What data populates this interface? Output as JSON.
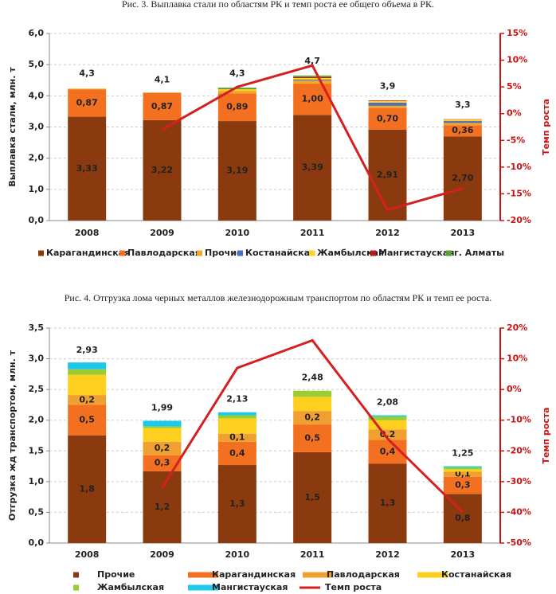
{
  "chart_data": [
    {
      "type": "bar",
      "stacked": true,
      "title": "Рис. 3. Выплавка стали по областям РК и темп роста ее общего объема в РК.",
      "y_label": "Выплавка стали, млн. т",
      "y2_label": "Темп роста",
      "categories": [
        "2008",
        "2009",
        "2010",
        "2011",
        "2012",
        "2013"
      ],
      "ylim": [
        0,
        6
      ],
      "yticks": [
        {
          "value": 0,
          "label": "0,0"
        },
        {
          "value": 1,
          "label": "1,0"
        },
        {
          "value": 2,
          "label": "2,0"
        },
        {
          "value": 3,
          "label": "3,0"
        },
        {
          "value": 4,
          "label": "4,0"
        },
        {
          "value": 5,
          "label": "5,0"
        },
        {
          "value": 6,
          "label": "6,0"
        }
      ],
      "y2lim": [
        -20,
        15
      ],
      "y2ticks": [
        {
          "value": -20,
          "label": "-20%"
        },
        {
          "value": -15,
          "label": "-15%"
        },
        {
          "value": -10,
          "label": "-10%"
        },
        {
          "value": -5,
          "label": "-5%"
        },
        {
          "value": 0,
          "label": "0%"
        },
        {
          "value": 5,
          "label": "5%"
        },
        {
          "value": 10,
          "label": "10%"
        },
        {
          "value": 15,
          "label": "15%"
        }
      ],
      "grid": true,
      "legend": "bottom",
      "series": [
        {
          "name": "Карагандинская",
          "color": "#8b3a10",
          "values": [
            3.33,
            3.22,
            3.19,
            3.39,
            2.91,
            2.7
          ],
          "value_labels": [
            "3,33",
            "3,22",
            "3,19",
            "3,39",
            "2,91",
            "2,70"
          ]
        },
        {
          "name": "Павлодарская",
          "color": "#f37021",
          "values": [
            0.87,
            0.87,
            0.89,
            1.0,
            0.7,
            0.36
          ],
          "value_labels": [
            "0,87",
            "0,87",
            "0,89",
            "1,00",
            "0,70",
            "0,36"
          ]
        },
        {
          "name": "Прочие",
          "color": "#f5a623",
          "values": [
            0.03,
            0.02,
            0.08,
            0.1,
            0.07,
            0.07
          ]
        },
        {
          "name": "Костанайская",
          "color": "#4a6fc4",
          "values": [
            0,
            0,
            0,
            0.03,
            0.1,
            0.06
          ]
        },
        {
          "name": "Жамбылская",
          "color": "#ffd21f",
          "values": [
            0,
            0,
            0.05,
            0.05,
            0.05,
            0.05
          ]
        },
        {
          "name": "Мангистауская",
          "color": "#c0161b",
          "values": [
            0,
            0,
            0,
            0.03,
            0.02,
            0.01
          ]
        },
        {
          "name": "г. Алматы",
          "color": "#5aa02c",
          "values": [
            0,
            0,
            0.05,
            0.05,
            0,
            0
          ]
        },
        {
          "type": "line",
          "axis": "y2",
          "color": "#d42020",
          "values": [
            null,
            -3,
            5,
            9,
            -18,
            -14
          ]
        }
      ],
      "totals": [
        4.3,
        4.1,
        4.3,
        4.7,
        3.9,
        3.3
      ],
      "total_labels": [
        "4,3",
        "4,1",
        "4,3",
        "4,7",
        "3,9",
        "3,3"
      ]
    },
    {
      "type": "bar",
      "stacked": true,
      "title": "Рис. 4. Отгрузка лома черных металлов железнодорожным транспортом по областям РК и темп ее роста.",
      "y_label": "Отгрузка жд транспортом, млн. т",
      "y2_label": "Темп роста",
      "categories": [
        "2008",
        "2009",
        "2010",
        "2011",
        "2012",
        "2013"
      ],
      "ylim": [
        0,
        3.5
      ],
      "yticks": [
        {
          "value": 0,
          "label": "0,0"
        },
        {
          "value": 0.5,
          "label": "0,5"
        },
        {
          "value": 1,
          "label": "1,0"
        },
        {
          "value": 1.5,
          "label": "1,5"
        },
        {
          "value": 2,
          "label": "2,0"
        },
        {
          "value": 2.5,
          "label": "2,5"
        },
        {
          "value": 3,
          "label": "3,0"
        },
        {
          "value": 3.5,
          "label": "3,5"
        }
      ],
      "y2lim": [
        -50,
        20
      ],
      "y2ticks": [
        {
          "value": -50,
          "label": "-50%"
        },
        {
          "value": -40,
          "label": "-40%"
        },
        {
          "value": -30,
          "label": "-30%"
        },
        {
          "value": -20,
          "label": "-20%"
        },
        {
          "value": -10,
          "label": "-10%"
        },
        {
          "value": 0,
          "label": "0%"
        },
        {
          "value": 10,
          "label": "10%"
        },
        {
          "value": 20,
          "label": "20%"
        }
      ],
      "grid": true,
      "legend": "bottom",
      "series": [
        {
          "name": "Прочие",
          "color": "#8b3a10",
          "values": [
            1.75,
            1.17,
            1.27,
            1.48,
            1.29,
            0.8
          ],
          "value_labels": [
            "1,8",
            "1,2",
            "1,3",
            "1,5",
            "1,3",
            "0,8"
          ]
        },
        {
          "name": "Карагандинская",
          "color": "#f37021",
          "values": [
            0.5,
            0.26,
            0.38,
            0.45,
            0.39,
            0.28
          ],
          "value_labels": [
            "0,5",
            "0,3",
            "0,4",
            "0,5",
            "0,4",
            "0,3"
          ]
        },
        {
          "name": "Павлодарская",
          "color": "#f0a030",
          "values": [
            0.16,
            0.22,
            0.13,
            0.22,
            0.17,
            0.08
          ],
          "value_labels": [
            "0,2",
            "0,2",
            "0,1",
            "0,2",
            "0,2",
            "0,1"
          ]
        },
        {
          "name": "Костанайская",
          "color": "#ffcf1f",
          "values": [
            0.33,
            0.22,
            0.25,
            0.23,
            0.15,
            0.04
          ]
        },
        {
          "name": "Жамбылская",
          "color": "#9acd32",
          "values": [
            0.09,
            0.03,
            0.05,
            0.1,
            0.06,
            0.03
          ]
        },
        {
          "name": "Мангистауская",
          "color": "#1ec8ea",
          "values": [
            0.11,
            0.09,
            0.05,
            0,
            0.02,
            0.02
          ]
        },
        {
          "name": "Темп роста",
          "type": "line",
          "axis": "y2",
          "color": "#d42020",
          "values": [
            null,
            -32,
            7,
            16,
            -16,
            -40
          ]
        }
      ],
      "totals": [
        2.93,
        1.99,
        2.13,
        2.48,
        2.08,
        1.25
      ],
      "total_labels": [
        "2,93",
        "1,99",
        "2,13",
        "2,48",
        "2,08",
        "1,25"
      ]
    }
  ]
}
